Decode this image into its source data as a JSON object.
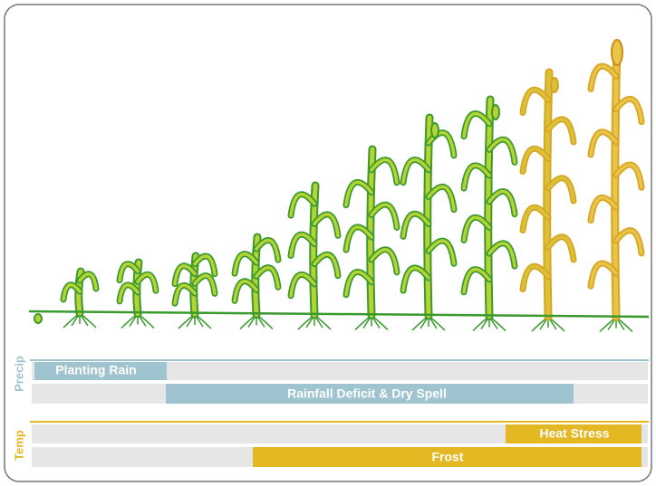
{
  "precip": {
    "label": "Precip",
    "bars": [
      "Planting Rain",
      "Rainfall Deficit & Dry Spell"
    ]
  },
  "temp": {
    "label": "Temp",
    "bars": [
      "Heat Stress",
      "Frost"
    ]
  }
}
